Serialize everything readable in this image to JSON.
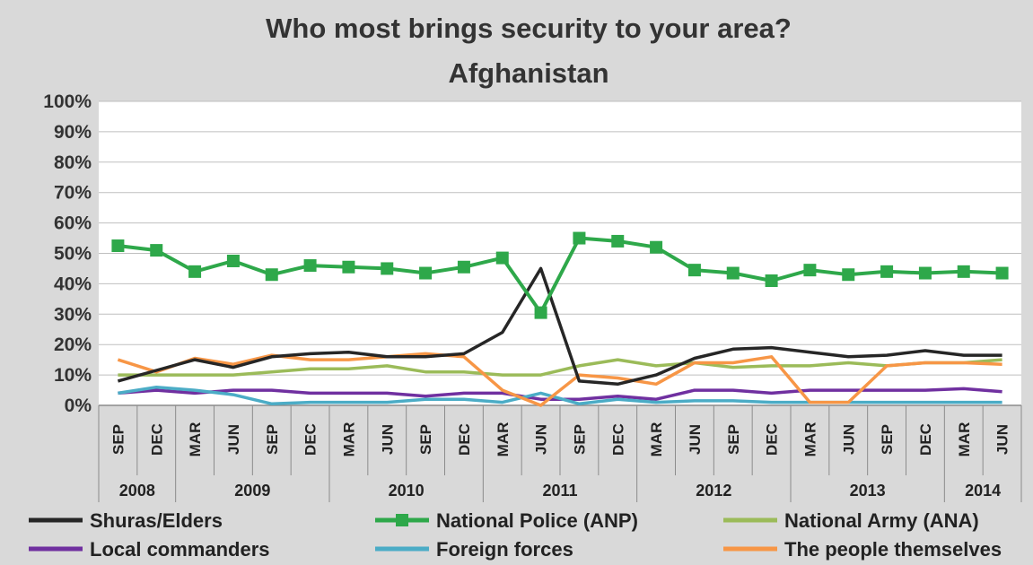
{
  "chart_data": {
    "type": "line",
    "title": "Who most brings security to your area?",
    "subtitle": "Afghanistan",
    "ylim": [
      0,
      100
    ],
    "yticks": [
      "0%",
      "10%",
      "20%",
      "30%",
      "40%",
      "50%",
      "60%",
      "70%",
      "80%",
      "90%",
      "100%"
    ],
    "categories": [
      "SEP",
      "DEC",
      "MAR",
      "JUN",
      "SEP",
      "DEC",
      "MAR",
      "JUN",
      "SEP",
      "DEC",
      "MAR",
      "JUN",
      "SEP",
      "DEC",
      "MAR",
      "JUN",
      "SEP",
      "DEC",
      "MAR",
      "JUN",
      "SEP",
      "DEC",
      "MAR",
      "JUN"
    ],
    "years": [
      {
        "label": "2008",
        "start": 0,
        "end": 1
      },
      {
        "label": "2009",
        "start": 2,
        "end": 5
      },
      {
        "label": "2010",
        "start": 6,
        "end": 9
      },
      {
        "label": "2011",
        "start": 10,
        "end": 13
      },
      {
        "label": "2012",
        "start": 14,
        "end": 17
      },
      {
        "label": "2013",
        "start": 18,
        "end": 21
      },
      {
        "label": "2014",
        "start": 22,
        "end": 23
      }
    ],
    "grid": true,
    "legend_position": "bottom",
    "series": [
      {
        "name": "Local commanders",
        "color": "#7030a0",
        "marker": "none",
        "values": [
          4,
          5,
          4,
          5,
          5,
          4,
          4,
          4,
          3,
          4,
          4,
          2,
          2,
          3,
          2,
          5,
          5,
          4,
          5,
          5,
          5,
          5,
          5.5,
          4.5
        ]
      },
      {
        "name": "Foreign forces",
        "color": "#4bacc6",
        "marker": "none",
        "values": [
          4,
          6,
          5,
          3.5,
          0.5,
          1,
          1,
          1,
          2,
          2,
          1,
          4,
          0.5,
          2,
          1,
          1.5,
          1.5,
          1,
          1,
          1,
          1,
          1,
          1,
          1
        ]
      },
      {
        "name": "National Army (ANA)",
        "color": "#9bbb59",
        "marker": "none",
        "values": [
          10,
          10,
          10,
          10,
          11,
          12,
          12,
          13,
          11,
          11,
          10,
          10,
          13,
          15,
          13,
          14,
          12.5,
          13,
          13,
          14,
          13,
          14,
          14,
          15
        ]
      },
      {
        "name": "The people themselves",
        "color": "#f79646",
        "marker": "none",
        "values": [
          15,
          11,
          15.5,
          13.5,
          16.5,
          15,
          15,
          16,
          17,
          16,
          5,
          0,
          10,
          9,
          7,
          14,
          14,
          16,
          1,
          1,
          13,
          14,
          14,
          13.5
        ]
      },
      {
        "name": "Shuras/Elders",
        "color": "#262626",
        "marker": "none",
        "values": [
          8,
          11.5,
          15,
          12.5,
          16,
          17,
          17.5,
          16,
          16,
          17,
          24,
          45,
          8,
          7,
          10,
          15.5,
          18.5,
          19,
          17.5,
          16,
          16.5,
          18,
          16.5,
          16.5
        ]
      },
      {
        "name": "National Police (ANP)",
        "color": "#2ea84a",
        "marker": "square",
        "values": [
          52.5,
          51,
          44,
          47.5,
          43,
          46,
          45.5,
          45,
          43.5,
          45.5,
          48.5,
          30.5,
          55,
          54,
          52,
          44.5,
          43.5,
          41,
          44.5,
          43,
          44,
          43.5,
          44,
          43.5
        ]
      }
    ],
    "legend": [
      {
        "name": "Shuras/Elders",
        "color": "#262626",
        "marker": "none"
      },
      {
        "name": "National Police (ANP)",
        "color": "#2ea84a",
        "marker": "square"
      },
      {
        "name": "National Army (ANA)",
        "color": "#9bbb59",
        "marker": "none"
      },
      {
        "name": "Local commanders",
        "color": "#7030a0",
        "marker": "none"
      },
      {
        "name": "Foreign forces",
        "color": "#4bacc6",
        "marker": "none"
      },
      {
        "name": "The people themselves",
        "color": "#f79646",
        "marker": "none"
      }
    ]
  }
}
